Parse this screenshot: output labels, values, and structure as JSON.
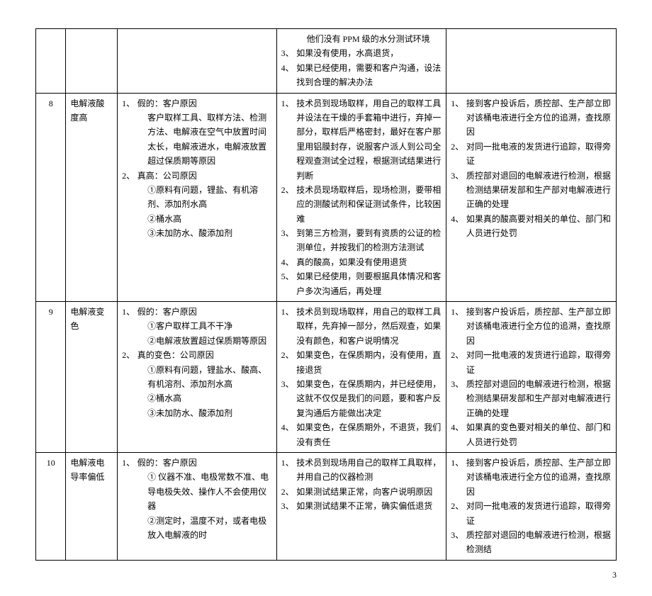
{
  "page_number": "3",
  "rows": [
    {
      "id": "",
      "name": "",
      "reason": "",
      "method_pre": [
        "他们没有 PPM 级的水分测试环境"
      ],
      "method": [
        {
          "n": "3、",
          "t": "如果没有使用，水高退货，"
        },
        {
          "n": "4、",
          "t": "如果已经使用，需要和客户沟通，设法找到合理的解决办法"
        }
      ],
      "action": ""
    },
    {
      "id": "8",
      "name": "电解液酸度高",
      "reason_items": [
        {
          "n": "1、",
          "t": "假的：客户原因"
        },
        {
          "indent": true,
          "t": "客户取样工具、取样方法、检测方法、电解液在空气中放置时间太长，电解液进水，电解液放置超过保质期等原因"
        },
        {
          "n": "2、",
          "t": "真高：公司原因"
        },
        {
          "indent": true,
          "t": "①原料有问题，锂盐、有机溶剂、添加剂水高"
        },
        {
          "indent": true,
          "t": "②桶水高"
        },
        {
          "indent": true,
          "t": "③未加防水、酸添加剂"
        }
      ],
      "method": [
        {
          "n": "1、",
          "t": "技术员到现场取样，用自己的取样工具并设法在干燥的手套箱中进行，弃掉一部分，取样后严格密封，最好在客户那里用铝膜封存，说服客户派人到公司全程观查测试全过程，根据测试结果进行判断"
        },
        {
          "n": "2、",
          "t": "技术员现场取样后，现场检测，要带相应的测酸试剂和保证测试条件，比较困难"
        },
        {
          "n": "3、",
          "t": "到第三方检测，要到有资质的公证的检测单位，并按我们的检测方法测试"
        },
        {
          "n": "4、",
          "t": "真的酸高，如果没有使用退货"
        },
        {
          "n": "5、",
          "t": "如果已经使用，则要根据具体情况和客户多次沟通后，再处理"
        }
      ],
      "action": [
        {
          "n": "1、",
          "t": "接到客户投诉后，质控部、生产部立即对该桶电液进行全方位的追溯，查找原因"
        },
        {
          "n": "2、",
          "t": "对同一批电液的发货进行追踪，取得旁证"
        },
        {
          "n": "3、",
          "t": "质控部对退回的电解液进行检测，根据检测结果研发部和生产部对电解液进行正确的处理"
        },
        {
          "n": "4、",
          "t": "如果真的酸高要对相关的单位、部门和人员进行处罚"
        }
      ]
    },
    {
      "id": "9",
      "name": "电解液变色",
      "reason_items": [
        {
          "n": "1、",
          "t": "假的：客户原因"
        },
        {
          "indent": true,
          "t": "①客户取样工具不干净"
        },
        {
          "indent": true,
          "t": "②电解液放置超过保质期等原因"
        },
        {
          "n": "2、",
          "t": "真的变色：公司原因"
        },
        {
          "indent": true,
          "t": "①原料有问题，锂盐水、酸高、有机溶剂、添加剂水高"
        },
        {
          "indent": true,
          "t": "②桶水高"
        },
        {
          "indent": true,
          "t": "③未加防水、酸添加剂"
        }
      ],
      "method": [
        {
          "n": "1、",
          "t": "技术员到现场取样，用自己的取样工具取样，先弃掉一部分，然后观查，如果没有颜色，和客户说明情况"
        },
        {
          "n": "2、",
          "t": "如果变色，在保质期内，没有使用，直接退货"
        },
        {
          "n": "3、",
          "t": "如果变色，在保质期内，并已经使用，这就不仅仅是我们的问题，要和客户反复沟通后方能做出决定"
        },
        {
          "n": "4、",
          "t": "如果变色，在保质期外，不退货，我们没有责任"
        }
      ],
      "action": [
        {
          "n": "1、",
          "t": "接到客户投诉后，质控部、生产部立即对该桶电液进行全方位的追溯，查找原因"
        },
        {
          "n": "2、",
          "t": "对同一批电液的发货进行追踪，取得旁证"
        },
        {
          "n": "3、",
          "t": "质控部对退回的电解液进行检测，根据检测结果研发部和生产部对电解液进行正确的处理"
        },
        {
          "n": "4、",
          "t": "如果真的变色要对相关的单位、部门和人员进行处罚"
        }
      ]
    },
    {
      "id": "10",
      "name": "电解液电导率偏低",
      "reason_items": [
        {
          "n": "1、",
          "t": "假的：客户原因"
        },
        {
          "indent": true,
          "t": "① 仪器不准、电极常数不准、电导电极失效、操作人不会使用仪器"
        },
        {
          "indent": true,
          "t": "②测定时，温度不对，或者电极放入电解液的时"
        }
      ],
      "method": [
        {
          "n": "1、",
          "t": "技术员到现场用自己的取样工具取样，并用自己的仪器检测"
        },
        {
          "n": "2、",
          "t": "如果测试结果正常，向客户说明原因"
        },
        {
          "n": "3、",
          "t": "如果测试结果不正常，确实偏低退货"
        }
      ],
      "action": [
        {
          "n": "1、",
          "t": "接到客户投诉后，质控部、生产部立即对该桶电液进行全方位的追溯，查找原因"
        },
        {
          "n": "2、",
          "t": "对同一批电液的发货进行追踪，取得旁证"
        },
        {
          "n": "3、",
          "t": "质控部对退回的电解液进行检测，根据检测结"
        }
      ]
    }
  ]
}
